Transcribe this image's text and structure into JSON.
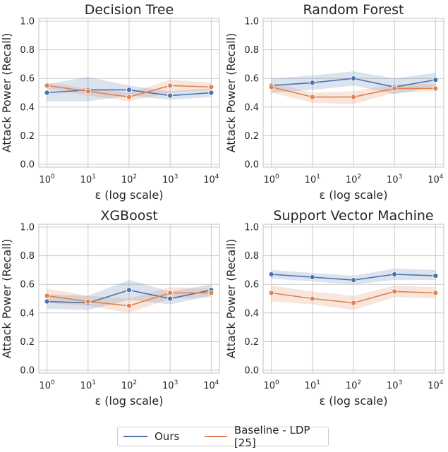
{
  "colors": {
    "ours": "#4c72b0",
    "baseline": "#dd8452"
  },
  "legend": [
    {
      "key": "ours",
      "label": "Ours"
    },
    {
      "key": "baseline",
      "label": "Baseline - LDP [25]"
    }
  ],
  "chart_data": [
    {
      "type": "line",
      "title": "Decision Tree",
      "xlabel": "ε (log scale)",
      "ylabel": "Attack Power (Recall)",
      "x": [
        0,
        1,
        2,
        3,
        4
      ],
      "xticks": [
        "1",
        "10",
        "100",
        "1000",
        "10000"
      ],
      "ylim": [
        -0.02,
        1.02
      ],
      "yticks": [
        "0.0",
        "0.2",
        "0.4",
        "0.6",
        "0.8",
        "1.0"
      ],
      "grid": true,
      "series": [
        {
          "name": "Ours",
          "key": "ours",
          "values": [
            0.5,
            0.52,
            0.52,
            0.48,
            0.5
          ],
          "lower": [
            0.44,
            0.44,
            0.48,
            0.45,
            0.47
          ],
          "upper": [
            0.56,
            0.61,
            0.55,
            0.51,
            0.53
          ]
        },
        {
          "name": "Baseline - LDP [25]",
          "key": "baseline",
          "values": [
            0.55,
            0.51,
            0.47,
            0.55,
            0.54
          ],
          "lower": [
            0.53,
            0.48,
            0.44,
            0.5,
            0.52
          ],
          "upper": [
            0.57,
            0.53,
            0.5,
            0.59,
            0.57
          ]
        }
      ]
    },
    {
      "type": "line",
      "title": "Random Forest",
      "xlabel": "ε (log scale)",
      "ylabel": "Attack Power (Recall)",
      "x": [
        0,
        1,
        2,
        3,
        4
      ],
      "xticks": [
        "1",
        "10",
        "100",
        "1000",
        "10000"
      ],
      "ylim": [
        -0.02,
        1.02
      ],
      "yticks": [
        "0.0",
        "0.2",
        "0.4",
        "0.6",
        "0.8",
        "1.0"
      ],
      "grid": true,
      "series": [
        {
          "name": "Ours",
          "key": "ours",
          "values": [
            0.55,
            0.57,
            0.6,
            0.54,
            0.59
          ],
          "lower": [
            0.5,
            0.52,
            0.55,
            0.49,
            0.54
          ],
          "upper": [
            0.6,
            0.62,
            0.65,
            0.6,
            0.64
          ]
        },
        {
          "name": "Baseline - LDP [25]",
          "key": "baseline",
          "values": [
            0.54,
            0.47,
            0.47,
            0.53,
            0.53
          ],
          "lower": [
            0.5,
            0.43,
            0.42,
            0.5,
            0.51
          ],
          "upper": [
            0.57,
            0.5,
            0.51,
            0.56,
            0.56
          ]
        }
      ]
    },
    {
      "type": "line",
      "title": "XGBoost",
      "xlabel": "ε (log scale)",
      "ylabel": "Attack Power (Recall)",
      "x": [
        0,
        1,
        2,
        3,
        4
      ],
      "xticks": [
        "1",
        "10",
        "100",
        "1000",
        "10000"
      ],
      "ylim": [
        -0.02,
        1.02
      ],
      "yticks": [
        "0.0",
        "0.2",
        "0.4",
        "0.6",
        "0.8",
        "1.0"
      ],
      "grid": true,
      "series": [
        {
          "name": "Ours",
          "key": "ours",
          "values": [
            0.48,
            0.47,
            0.56,
            0.5,
            0.56
          ],
          "lower": [
            0.43,
            0.42,
            0.49,
            0.46,
            0.52
          ],
          "upper": [
            0.53,
            0.52,
            0.63,
            0.55,
            0.6
          ]
        },
        {
          "name": "Baseline - LDP [25]",
          "key": "baseline",
          "values": [
            0.52,
            0.48,
            0.45,
            0.54,
            0.54
          ],
          "lower": [
            0.47,
            0.45,
            0.4,
            0.5,
            0.51
          ],
          "upper": [
            0.57,
            0.52,
            0.5,
            0.58,
            0.57
          ]
        }
      ]
    },
    {
      "type": "line",
      "title": "Support Vector Machine",
      "xlabel": "ε (log scale)",
      "ylabel": "Attack Power (Recall)",
      "x": [
        0,
        1,
        2,
        3,
        4
      ],
      "xticks": [
        "1",
        "10",
        "100",
        "1000",
        "10000"
      ],
      "ylim": [
        -0.02,
        1.02
      ],
      "yticks": [
        "0.0",
        "0.2",
        "0.4",
        "0.6",
        "0.8",
        "1.0"
      ],
      "grid": true,
      "series": [
        {
          "name": "Ours",
          "key": "ours",
          "values": [
            0.67,
            0.65,
            0.63,
            0.67,
            0.66
          ],
          "lower": [
            0.64,
            0.62,
            0.6,
            0.63,
            0.63
          ],
          "upper": [
            0.7,
            0.68,
            0.66,
            0.71,
            0.7
          ]
        },
        {
          "name": "Baseline - LDP [25]",
          "key": "baseline",
          "values": [
            0.54,
            0.5,
            0.47,
            0.55,
            0.54
          ],
          "lower": [
            0.48,
            0.46,
            0.42,
            0.51,
            0.5
          ],
          "upper": [
            0.59,
            0.55,
            0.52,
            0.59,
            0.58
          ]
        }
      ]
    }
  ]
}
